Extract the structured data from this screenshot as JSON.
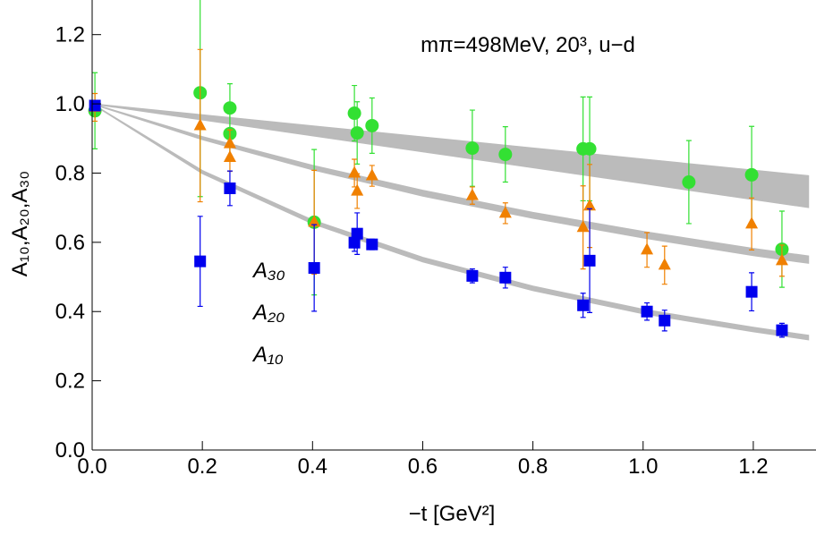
{
  "chart_data": {
    "type": "scatter",
    "title": "mπ=498MeV, 20³, u−d",
    "x_label": "−t [GeV²]",
    "y_label": "A₁₀,A₂₀,A₃₀",
    "xlim": [
      0,
      1.3
    ],
    "ylim": [
      0,
      1.3
    ],
    "xticks": [
      {
        "value": 0,
        "label": "0.0"
      },
      0.2,
      0.4,
      0.6,
      0.8,
      {
        "value": 1,
        "label": "1.0"
      },
      1.2
    ],
    "yticks": [
      {
        "value": 0,
        "label": "0.0"
      },
      0.2,
      0.4,
      0.6,
      0.8,
      {
        "value": 1,
        "label": "1.0"
      },
      1.2
    ],
    "legend": "left",
    "series": [
      {
        "name": "A₃₀",
        "color": "#33e033",
        "marker": "circle",
        "x": [
          0.005,
          0.196,
          0.25,
          0.25,
          0.403,
          0.476,
          0.481,
          0.508,
          0.69,
          0.75,
          0.891,
          0.903,
          1.083,
          1.197,
          1.252
        ],
        "values": [
          0.98,
          1.032,
          0.988,
          0.914,
          0.658,
          0.973,
          0.916,
          0.937,
          0.872,
          0.854,
          0.87,
          0.87,
          0.774,
          0.795,
          0.58
        ],
        "errors": [
          0.11,
          0.3,
          0.07,
          0.07,
          0.21,
          0.08,
          0.09,
          0.08,
          0.11,
          0.08,
          0.15,
          0.15,
          0.12,
          0.14,
          0.11
        ]
      },
      {
        "name": "A₂₀",
        "color": "#f08000",
        "marker": "triangle",
        "x": [
          0.005,
          0.196,
          0.25,
          0.25,
          0.403,
          0.476,
          0.481,
          0.508,
          0.69,
          0.75,
          0.891,
          0.903,
          1.007,
          1.039,
          1.197,
          1.252
        ],
        "values": [
          0.99,
          0.937,
          0.885,
          0.845,
          0.658,
          0.8,
          0.748,
          0.792,
          0.735,
          0.684,
          0.643,
          0.705,
          0.578,
          0.534,
          0.653,
          0.547
        ],
        "errors": [
          0.04,
          0.22,
          0.04,
          0.04,
          0.15,
          0.04,
          0.05,
          0.03,
          0.025,
          0.03,
          0.12,
          0.12,
          0.05,
          0.055,
          0.075,
          0.045
        ]
      },
      {
        "name": "A₁₀",
        "color": "#0000ee",
        "marker": "square",
        "x": [
          0.005,
          0.196,
          0.25,
          0.403,
          0.476,
          0.481,
          0.508,
          0.69,
          0.75,
          0.891,
          0.903,
          1.007,
          1.039,
          1.197,
          1.252
        ],
        "values": [
          0.995,
          0.545,
          0.756,
          0.526,
          0.599,
          0.625,
          0.594,
          0.503,
          0.498,
          0.418,
          0.547,
          0.4,
          0.374,
          0.457,
          0.346
        ],
        "errors": [
          0.01,
          0.13,
          0.05,
          0.125,
          0.025,
          0.06,
          0.015,
          0.02,
          0.03,
          0.035,
          0.15,
          0.025,
          0.03,
          0.055,
          0.02
        ]
      }
    ],
    "bands": [
      {
        "color": "#bbbbbb",
        "x": [
          0,
          0.2,
          0.4,
          0.6,
          0.8,
          1.0,
          1.2,
          1.3
        ],
        "upper": [
          1,
          0.968,
          0.936,
          0.904,
          0.872,
          0.84,
          0.808,
          0.792
        ],
        "lower": [
          1,
          0.954,
          0.908,
          0.862,
          0.816,
          0.77,
          0.724,
          0.701
        ]
      },
      {
        "color": "#bbbbbb",
        "x": [
          0,
          0.2,
          0.4,
          0.6,
          0.8,
          1.0,
          1.2,
          1.3
        ],
        "upper": [
          1,
          0.905,
          0.822,
          0.75,
          0.686,
          0.631,
          0.582,
          0.56
        ],
        "lower": [
          1,
          0.897,
          0.81,
          0.734,
          0.67,
          0.613,
          0.562,
          0.54
        ]
      },
      {
        "color": "#bbbbbb",
        "x": [
          0,
          0.2,
          0.4,
          0.6,
          0.8,
          1.0,
          1.2,
          1.3
        ],
        "upper": [
          1,
          0.807,
          0.664,
          0.556,
          0.473,
          0.406,
          0.354,
          0.331
        ],
        "lower": [
          1,
          0.799,
          0.654,
          0.544,
          0.461,
          0.394,
          0.342,
          0.319
        ]
      }
    ]
  }
}
